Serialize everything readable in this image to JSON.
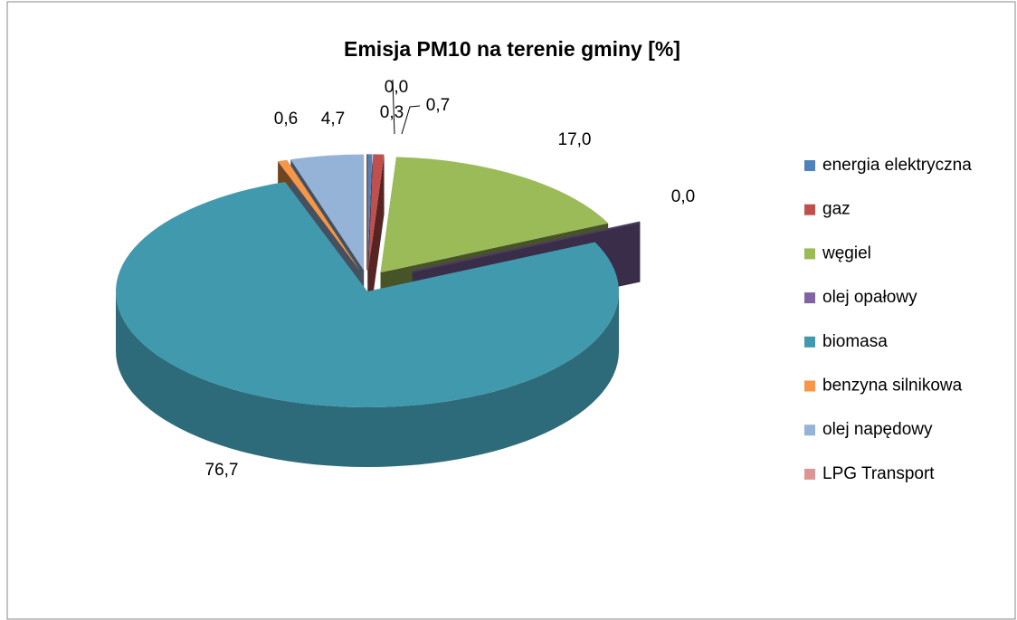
{
  "chart_data": {
    "type": "pie3d",
    "title": "Emisja PM10 na terenie gminy [%]",
    "categories": [
      "energia elektryczna",
      "gaz",
      "węgiel",
      "olej opałowy",
      "biomasa",
      "benzyna silnikowa",
      "olej napędowy",
      "LPG Transport"
    ],
    "values": [
      0.3,
      0.7,
      17.0,
      0.0,
      76.7,
      0.6,
      4.7,
      0.0
    ],
    "value_labels": [
      "0,3",
      "0,7",
      "17,0",
      "0,0",
      "76,7",
      "0,6",
      "4,7",
      "0,0"
    ],
    "colors": [
      "#4f81bd",
      "#c0504d",
      "#9bbb59",
      "#8064a2",
      "#4199ae",
      "#f79646",
      "#95b3d7",
      "#d99694"
    ],
    "legend": "right"
  }
}
